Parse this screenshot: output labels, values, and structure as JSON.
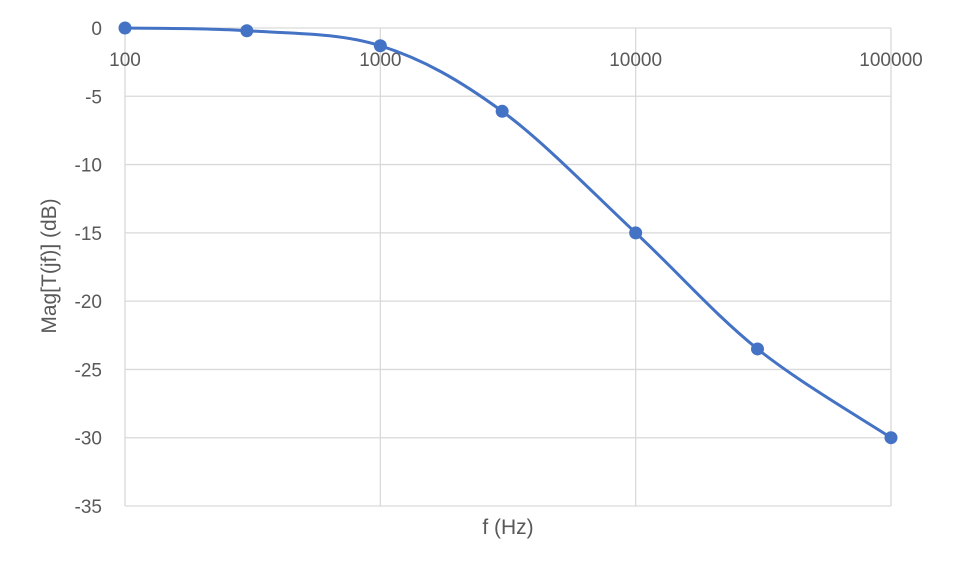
{
  "chart_data": {
    "type": "scatter",
    "title": "",
    "xlabel": "f (Hz)",
    "ylabel": "Mag[T(jf)] (dB)",
    "x_scale": "log",
    "xlim": [
      100,
      100000
    ],
    "ylim": [
      -35,
      0
    ],
    "x_ticks": [
      100,
      1000,
      10000,
      100000
    ],
    "x_tick_labels": [
      "100",
      "1000",
      "10000",
      "100000"
    ],
    "y_ticks": [
      0,
      -5,
      -10,
      -15,
      -20,
      -25,
      -30,
      -35
    ],
    "y_tick_labels": [
      "0",
      "-5",
      "-10",
      "-15",
      "-20",
      "-25",
      "-30",
      "-35"
    ],
    "grid": true,
    "smooth_line": true,
    "series": [
      {
        "color": "#4472C4",
        "points": [
          {
            "x": 100,
            "y": 0
          },
          {
            "x": 300,
            "y": -0.2
          },
          {
            "x": 1000,
            "y": -1.3
          },
          {
            "x": 3000,
            "y": -6.1
          },
          {
            "x": 10000,
            "y": -15.0
          },
          {
            "x": 30000,
            "y": -23.5
          },
          {
            "x": 100000,
            "y": -30.0
          }
        ]
      }
    ]
  }
}
